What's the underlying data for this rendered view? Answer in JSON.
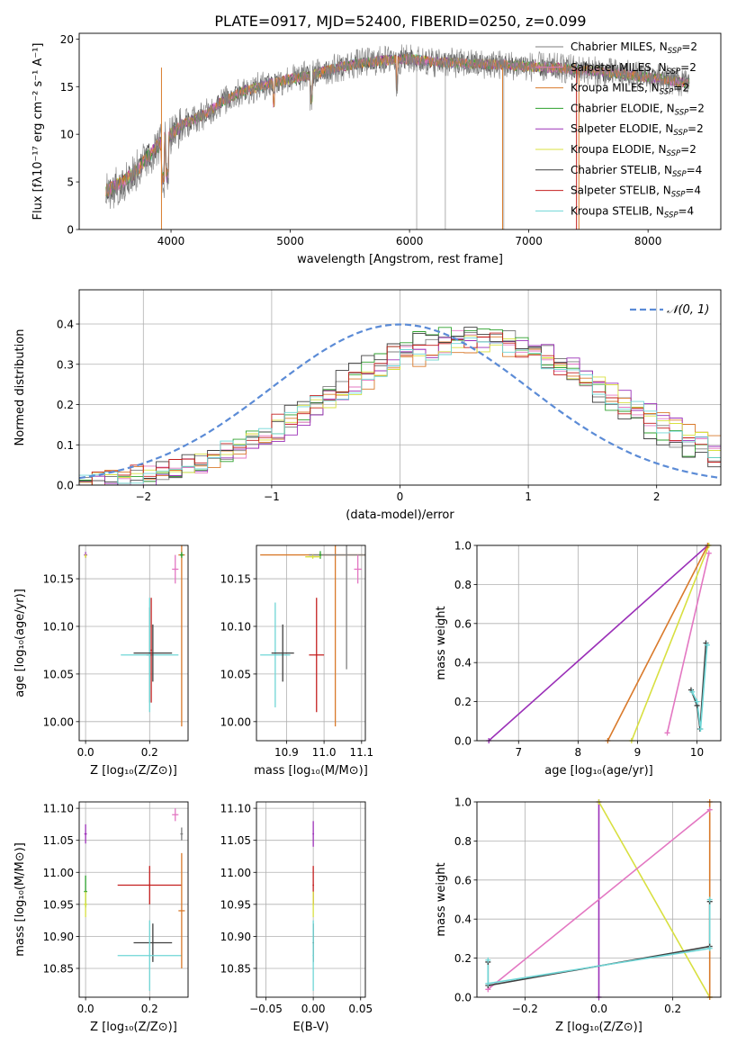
{
  "figure": {
    "title": "PLATE=0917, MJD=52400, FIBERID=0250, z=0.099"
  },
  "series_colors": {
    "Chabrier MILES": "#7f7f7f",
    "Salpeter MILES": "#e377c2",
    "Kroupa MILES": "#d97a2b",
    "Chabrier ELODIE": "#2ca02c",
    "Salpeter ELODIE": "#9b30b8",
    "Kroupa ELODIE": "#d8e040",
    "Chabrier STELIB": "#404040",
    "Salpeter STELIB": "#c41f1f",
    "Kroupa STELIB": "#6fd6d6"
  },
  "legend": {
    "spectrum": [
      {
        "model": "Chabrier MILES",
        "nssp": "2"
      },
      {
        "model": "Salpeter MILES",
        "nssp": "2"
      },
      {
        "model": "Kroupa MILES",
        "nssp": "2"
      },
      {
        "model": "Chabrier ELODIE",
        "nssp": "2"
      },
      {
        "model": "Salpeter ELODIE",
        "nssp": "2"
      },
      {
        "model": "Kroupa ELODIE",
        "nssp": "2"
      },
      {
        "model": "Chabrier STELIB",
        "nssp": "4"
      },
      {
        "model": "Salpeter STELIB",
        "nssp": "4"
      },
      {
        "model": "Kroupa STELIB",
        "nssp": "4"
      }
    ],
    "normal": "𝒩(0, 1)"
  },
  "chart_data": [
    {
      "id": "spectrum",
      "type": "line",
      "xlabel": "wavelength [Angstrom, rest frame]",
      "ylabel": "Flux [fλ10⁻¹⁷ erg cm⁻² s⁻¹ A⁻¹]",
      "xlim": [
        3230,
        8610
      ],
      "ylim": [
        0,
        20.6
      ],
      "xticks": [
        4000,
        5000,
        6000,
        7000,
        8000
      ],
      "yticks": [
        0,
        5,
        10,
        15,
        20
      ],
      "continuum": {
        "x": [
          3450,
          3600,
          3700,
          3800,
          3900,
          4000,
          4100,
          4200,
          4300,
          4400,
          4600,
          4800,
          5000,
          5200,
          5400,
          5600,
          5800,
          6000,
          6200,
          6500,
          6800,
          7000,
          7200,
          7500,
          7800,
          8100,
          8350
        ],
        "y": [
          4,
          5,
          6,
          7.5,
          9,
          10,
          11,
          11.6,
          12.2,
          13.2,
          14.5,
          15.2,
          15.8,
          16.3,
          17,
          17.5,
          17.8,
          17.9,
          17.6,
          17.4,
          17.3,
          17.1,
          17,
          16.7,
          16.3,
          15.8,
          15.3
        ]
      }
    },
    {
      "id": "residuals",
      "type": "line",
      "xlabel": "(data-model)/error",
      "ylabel": "Normed distribution",
      "xlim": [
        -2.5,
        2.5
      ],
      "ylim": [
        0,
        0.485
      ],
      "xticks": [
        -2,
        -1,
        0,
        1,
        2
      ],
      "yticks": [
        0,
        0.1,
        0.2,
        0.3,
        0.4
      ],
      "normal": {
        "mean": 0,
        "sigma": 1
      }
    },
    {
      "id": "age_vs_Z",
      "type": "scatter",
      "xlabel": "Z [log₁₀(Z/Z⊙)]",
      "ylabel": "age  [log₁₀(age/yr)]",
      "xlim": [
        -0.02,
        0.32
      ],
      "ylim": [
        9.98,
        10.185
      ],
      "xticks": [
        0.0,
        0.2
      ],
      "yticks": [
        10.0,
        10.05,
        10.1,
        10.15
      ],
      "points": [
        {
          "model": "Chabrier MILES",
          "x": 0.2,
          "y": 10.07,
          "xerr": 0.01,
          "yerr": 0.05
        },
        {
          "model": "Kroupa STELIB",
          "x": 0.2,
          "y": 10.07,
          "xerr": 0.09,
          "yerr": 0.06
        },
        {
          "model": "Chabrier STELIB",
          "x": 0.21,
          "y": 10.072,
          "xerr": 0.06,
          "yerr": 0.03
        },
        {
          "model": "Salpeter STELIB",
          "x": 0.205,
          "y": 10.075,
          "xerr": 0.002,
          "yerr": 0.055
        },
        {
          "model": "Kroupa MILES",
          "x": 0.3,
          "y": 10.175,
          "xerr": 0.01,
          "yerr": 0.18
        },
        {
          "model": "Salpeter MILES",
          "x": 0.28,
          "y": 10.16,
          "xerr": 0.01,
          "yerr": 0.015
        },
        {
          "model": "Chabrier ELODIE",
          "x": 0.3,
          "y": 10.175,
          "xerr": 0.005,
          "yerr": 0.003
        },
        {
          "model": "Salpeter ELODIE",
          "x": 0.0,
          "y": 10.175,
          "xerr": 0.005,
          "yerr": 0.003
        },
        {
          "model": "Kroupa ELODIE",
          "x": 0.0,
          "y": 10.174,
          "xerr": 0.003,
          "yerr": 0.002
        }
      ]
    },
    {
      "id": "age_vs_mass",
      "type": "scatter",
      "xlabel": "mass [log₁₀(M/M⊙)]",
      "ylabel": "",
      "xlim": [
        10.82,
        11.11
      ],
      "ylim": [
        9.98,
        10.185
      ],
      "xticks": [
        10.9,
        11.0,
        11.1
      ],
      "yticks": [
        10.0,
        10.05,
        10.1,
        10.15
      ],
      "points": [
        {
          "model": "Kroupa STELIB",
          "x": 10.87,
          "y": 10.07,
          "xerr": 0.04,
          "yerr": 0.055
        },
        {
          "model": "Chabrier STELIB",
          "x": 10.89,
          "y": 10.072,
          "xerr": 0.03,
          "yerr": 0.03
        },
        {
          "model": "Salpeter STELIB",
          "x": 10.98,
          "y": 10.07,
          "xerr": 0.02,
          "yerr": 0.06
        },
        {
          "model": "Kroupa MILES",
          "x": 11.03,
          "y": 10.175,
          "xerr": 0.2,
          "yerr": 0.18
        },
        {
          "model": "Chabrier MILES",
          "x": 11.06,
          "y": 10.175,
          "xerr": 0.1,
          "yerr": 0.12
        },
        {
          "model": "Salpeter MILES",
          "x": 11.09,
          "y": 10.16,
          "xerr": 0.01,
          "yerr": 0.015
        },
        {
          "model": "Chabrier ELODIE",
          "x": 10.99,
          "y": 10.175,
          "xerr": 0.003,
          "yerr": 0.004
        },
        {
          "model": "Kroupa ELODIE",
          "x": 10.97,
          "y": 10.173,
          "xerr": 0.02,
          "yerr": 0.002
        }
      ]
    },
    {
      "id": "mass_weight_vs_age",
      "type": "line",
      "xlabel": "age  [log₁₀(age/yr)]",
      "ylabel": "mass weight",
      "xlim": [
        6.3,
        10.4
      ],
      "ylim": [
        0,
        1
      ],
      "xticks": [
        7,
        8,
        9,
        10
      ],
      "yticks": [
        0,
        0.2,
        0.4,
        0.6,
        0.8,
        1.0
      ],
      "series": [
        {
          "model": "Salpeter ELODIE",
          "x": [
            6.5,
            10.18
          ],
          "y": [
            0,
            1
          ]
        },
        {
          "model": "Kroupa MILES",
          "x": [
            8.5,
            10.18
          ],
          "y": [
            0,
            1
          ]
        },
        {
          "model": "Kroupa ELODIE",
          "x": [
            8.9,
            10.2
          ],
          "y": [
            0,
            1
          ]
        },
        {
          "model": "Salpeter MILES",
          "x": [
            9.5,
            10.2
          ],
          "y": [
            0.04,
            0.96
          ]
        },
        {
          "model": "Chabrier STELIB",
          "x": [
            9.9,
            10.0,
            10.05,
            10.15
          ],
          "y": [
            0.26,
            0.18,
            0.06,
            0.5
          ]
        },
        {
          "model": "Kroupa STELIB",
          "x": [
            9.92,
            10.0,
            10.06,
            10.17
          ],
          "y": [
            0.25,
            0.2,
            0.06,
            0.49
          ]
        }
      ]
    },
    {
      "id": "mass_vs_Z",
      "type": "scatter",
      "xlabel": "Z [log₁₀(Z/Z⊙)]",
      "ylabel": "mass [log₁₀(M/M⊙)]",
      "xlim": [
        -0.02,
        0.32
      ],
      "ylim": [
        10.805,
        11.11
      ],
      "xticks": [
        0.0,
        0.2
      ],
      "yticks": [
        10.85,
        10.9,
        10.95,
        11.0,
        11.05,
        11.1
      ],
      "points": [
        {
          "model": "Salpeter STELIB",
          "x": 0.2,
          "y": 10.98,
          "xerr": 0.1,
          "yerr": 0.03
        },
        {
          "model": "Chabrier STELIB",
          "x": 0.21,
          "y": 10.89,
          "xerr": 0.06,
          "yerr": 0.03
        },
        {
          "model": "Kroupa STELIB",
          "x": 0.2,
          "y": 10.87,
          "xerr": 0.1,
          "yerr": 0.055
        },
        {
          "model": "Kroupa MILES",
          "x": 0.3,
          "y": 10.94,
          "xerr": 0.01,
          "yerr": 0.09
        },
        {
          "model": "Salpeter MILES",
          "x": 0.28,
          "y": 11.09,
          "xerr": 0.01,
          "yerr": 0.01
        },
        {
          "model": "Salpeter ELODIE",
          "x": 0.0,
          "y": 11.06,
          "xerr": 0.004,
          "yerr": 0.015
        },
        {
          "model": "Chabrier ELODIE",
          "x": 0.0,
          "y": 10.97,
          "xerr": 0.005,
          "yerr": 0.025
        },
        {
          "model": "Kroupa ELODIE",
          "x": 0.0,
          "y": 10.95,
          "xerr": 0.005,
          "yerr": 0.02
        },
        {
          "model": "Chabrier MILES",
          "x": 0.3,
          "y": 11.06,
          "xerr": 0.004,
          "yerr": 0.01
        }
      ]
    },
    {
      "id": "mass_vs_EBV",
      "type": "scatter",
      "xlabel": "E(B-V)",
      "ylabel": "",
      "xlim": [
        -0.06,
        0.055
      ],
      "ylim": [
        10.805,
        11.11
      ],
      "xticks": [
        -0.05,
        0.0,
        0.05
      ],
      "yticks": [
        10.85,
        10.9,
        10.95,
        11.0,
        11.05,
        11.1
      ],
      "points": [
        {
          "model": "Salpeter ELODIE",
          "x": 0.0,
          "y": 11.06,
          "xerr": 0.0,
          "yerr": 0.02
        },
        {
          "model": "Salpeter STELIB",
          "x": 0.0,
          "y": 10.98,
          "xerr": 0.0,
          "yerr": 0.03
        },
        {
          "model": "Kroupa ELODIE",
          "x": 0.0,
          "y": 10.95,
          "xerr": 0.0,
          "yerr": 0.02
        },
        {
          "model": "Chabrier STELIB",
          "x": 0.0,
          "y": 10.89,
          "xerr": 0.0,
          "yerr": 0.03
        },
        {
          "model": "Kroupa STELIB",
          "x": 0.0,
          "y": 10.87,
          "xerr": 0.0,
          "yerr": 0.055
        }
      ]
    },
    {
      "id": "mass_weight_vs_Z",
      "type": "line",
      "xlabel": "Z [log₁₀(Z/Z⊙)]",
      "ylabel": "mass weight",
      "xlim": [
        -0.33,
        0.33
      ],
      "ylim": [
        0,
        1
      ],
      "xticks": [
        -0.2,
        0.0,
        0.2
      ],
      "yticks": [
        0,
        0.2,
        0.4,
        0.6,
        0.8,
        1.0
      ],
      "series": [
        {
          "model": "Salpeter ELODIE",
          "x": [
            0.0,
            0.0
          ],
          "y": [
            0,
            1
          ]
        },
        {
          "model": "Kroupa ELODIE",
          "x": [
            0.0,
            0.3
          ],
          "y": [
            1,
            0
          ]
        },
        {
          "model": "Salpeter MILES",
          "x": [
            -0.3,
            0.3
          ],
          "y": [
            0.04,
            0.96
          ]
        },
        {
          "model": "Kroupa MILES",
          "x": [
            0.3,
            0.3
          ],
          "y": [
            0,
            1
          ]
        },
        {
          "model": "Chabrier STELIB",
          "x": [
            -0.3,
            -0.3,
            0.3,
            0.3
          ],
          "y": [
            0.18,
            0.06,
            0.26,
            0.49
          ]
        },
        {
          "model": "Kroupa STELIB",
          "x": [
            -0.3,
            -0.3,
            0.3,
            0.3
          ],
          "y": [
            0.19,
            0.07,
            0.25,
            0.5
          ]
        }
      ]
    }
  ]
}
